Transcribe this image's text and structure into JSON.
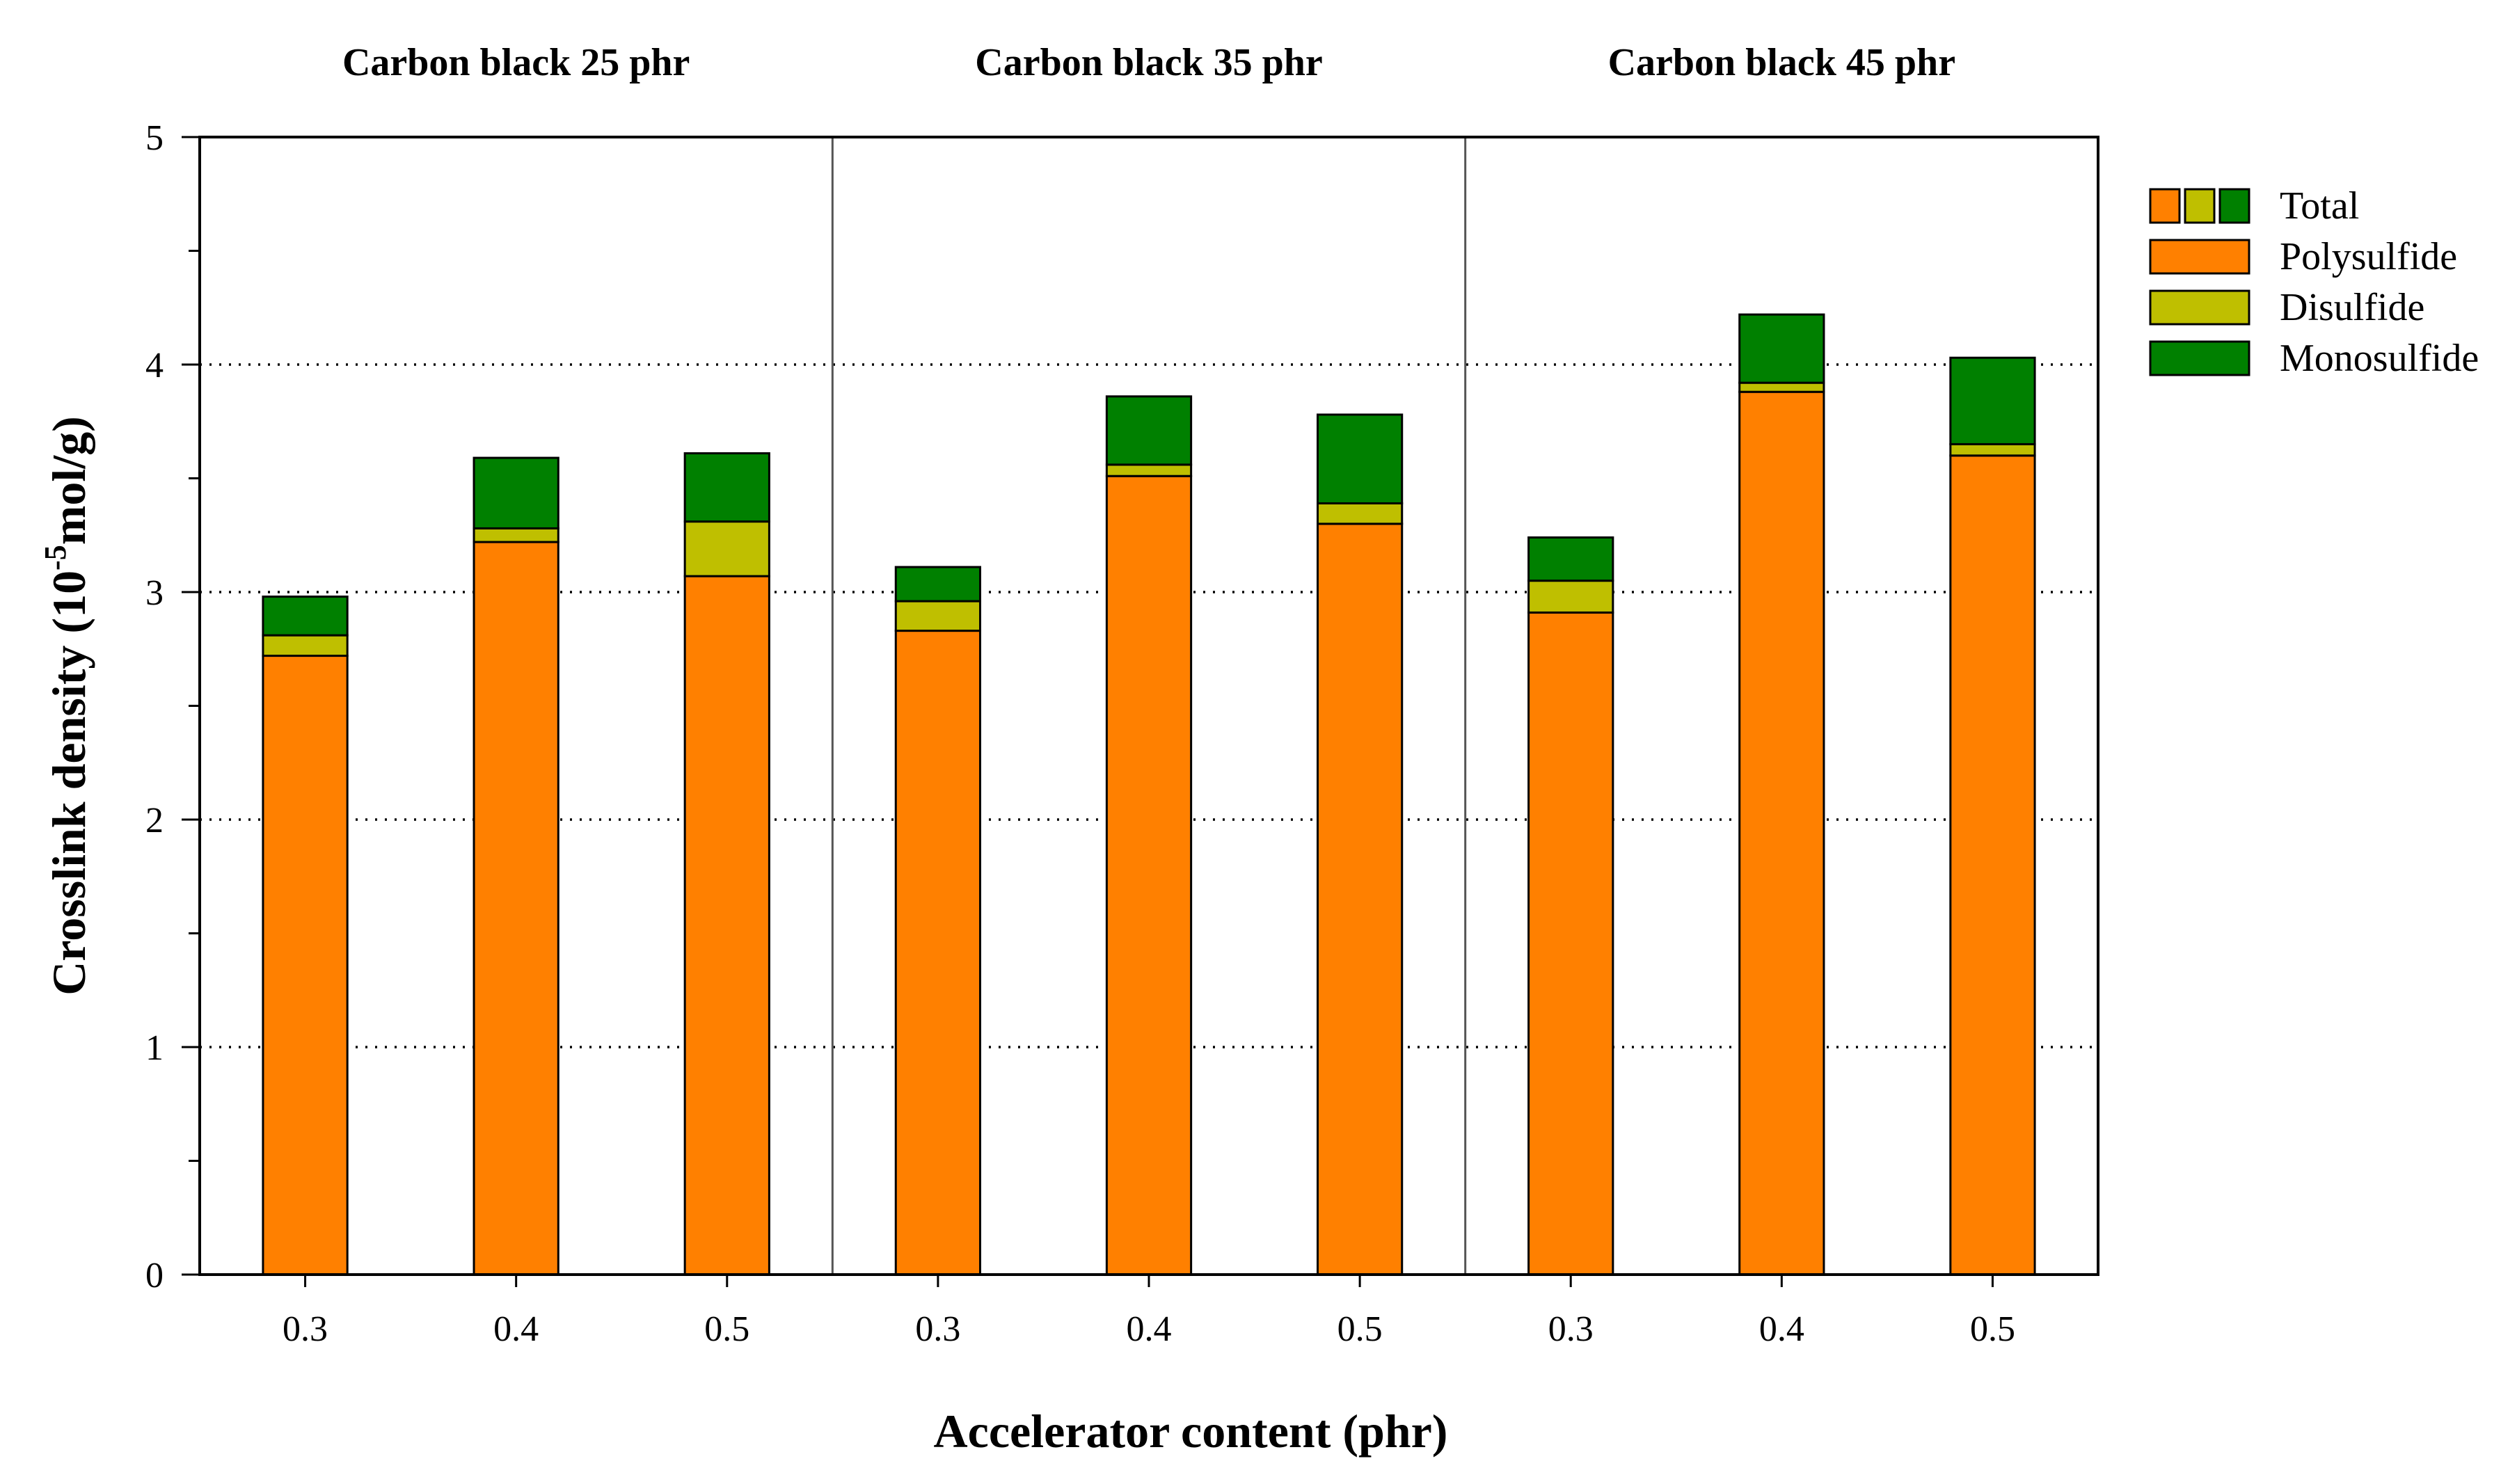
{
  "chart_data": {
    "type": "bar",
    "stacked": true,
    "xlabel": "Accelerator content (phr)",
    "ylabel_prefix": "Crosslink density (10",
    "ylabel_sup": "-5",
    "ylabel_suffix": "mol/g)",
    "ylim": [
      0,
      5
    ],
    "yticks": [
      "0",
      "1",
      "2",
      "3",
      "4",
      "5"
    ],
    "grid": "horizontal dotted at 1, 2, 3, 4",
    "legend_position": "right",
    "groups": [
      {
        "title": "Carbon black 25 phr",
        "categories": [
          "0.3",
          "0.4",
          "0.5"
        ]
      },
      {
        "title": "Carbon black 35 phr",
        "categories": [
          "0.3",
          "0.4",
          "0.5"
        ]
      },
      {
        "title": "Carbon black 45 phr",
        "categories": [
          "0.3",
          "0.4",
          "0.5"
        ]
      }
    ],
    "series": [
      {
        "name": "Polysulfide",
        "color": "#FF8000",
        "values": [
          2.72,
          3.22,
          3.07,
          2.83,
          3.51,
          3.3,
          2.91,
          3.88,
          3.6
        ]
      },
      {
        "name": "Disulfide",
        "color": "#BFBF00",
        "values": [
          0.09,
          0.06,
          0.24,
          0.13,
          0.05,
          0.09,
          0.14,
          0.04,
          0.05
        ]
      },
      {
        "name": "Monosulfide",
        "color": "#008000",
        "values": [
          0.17,
          0.31,
          0.3,
          0.15,
          0.3,
          0.39,
          0.19,
          0.3,
          0.38
        ]
      }
    ],
    "legend": [
      {
        "label": "Total",
        "type": "combined"
      },
      {
        "label": "Polysulfide",
        "type": "single"
      },
      {
        "label": "Disulfide",
        "type": "single"
      },
      {
        "label": "Monosulfide",
        "type": "single"
      }
    ]
  }
}
